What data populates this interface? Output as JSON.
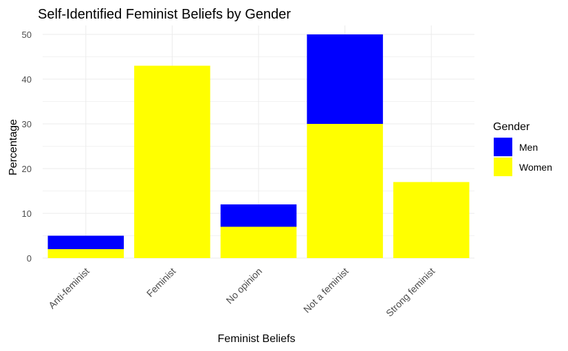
{
  "chart_data": {
    "type": "bar",
    "stacked": true,
    "title": "Self-Identified Feminist Beliefs by Gender",
    "xlabel": "Feminist Beliefs",
    "ylabel": "Percentage",
    "categories": [
      "Anti-feminist",
      "Feminist",
      "No opinion",
      "Not a feminist",
      "Strong feminist"
    ],
    "series": [
      {
        "name": "Women",
        "color": "#FFFF00",
        "values": [
          2,
          43,
          7,
          30,
          17
        ]
      },
      {
        "name": "Men",
        "color": "#0000FF",
        "values": [
          3,
          0,
          5,
          20,
          0
        ]
      }
    ],
    "ylim": [
      0,
      52
    ],
    "yticks": [
      0,
      10,
      20,
      30,
      40,
      50
    ],
    "grid": true,
    "legend": {
      "title": "Gender",
      "position": "right",
      "entries": [
        {
          "label": "Men",
          "color": "#0000FF"
        },
        {
          "label": "Women",
          "color": "#FFFF00"
        }
      ]
    }
  }
}
